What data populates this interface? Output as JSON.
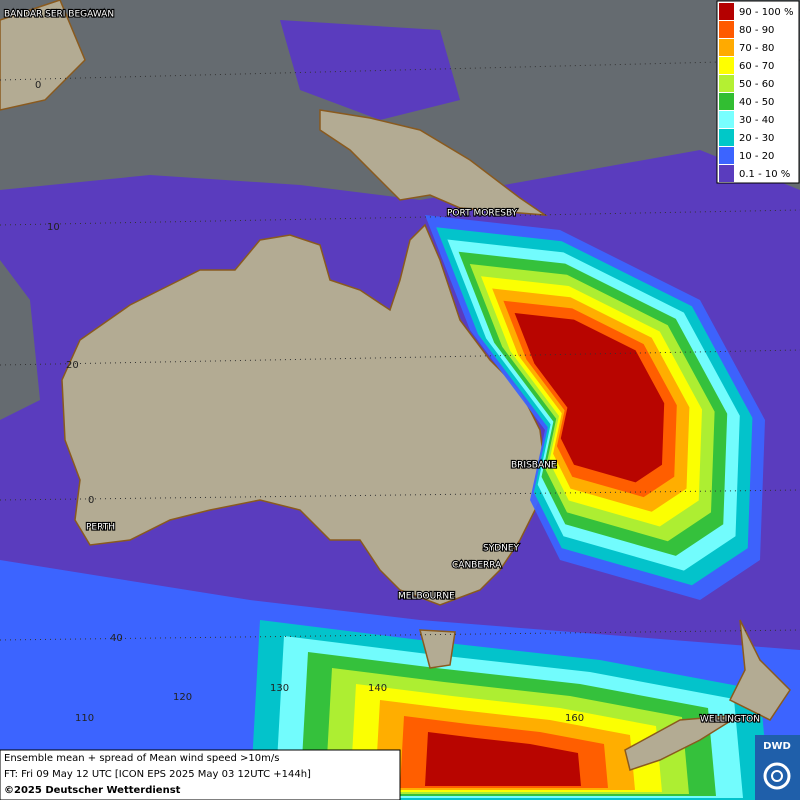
{
  "map": {
    "places": [
      "BANDAR SERI BEGAWAN",
      "PORT MORESBY",
      "BRISBANE",
      "PERTH",
      "SYDNEY",
      "CANBERRA",
      "MELBOURNE",
      "WELLINGTON"
    ],
    "grid_labels": [
      "0",
      "10",
      "20",
      "0",
      "40",
      "110",
      "120",
      "130",
      "140",
      "160"
    ],
    "legend": [
      {
        "label": "90 - 100 %",
        "color": "#b40000"
      },
      {
        "label": "80 - 90",
        "color": "#ff5a00"
      },
      {
        "label": "70 - 80",
        "color": "#ffaa00"
      },
      {
        "label": "60 - 70",
        "color": "#ffff00"
      },
      {
        "label": "50 - 60",
        "color": "#b4f032"
      },
      {
        "label": "40 - 50",
        "color": "#32be32"
      },
      {
        "label": "30 - 40",
        "color": "#78ffff"
      },
      {
        "label": "20 - 30",
        "color": "#00c8c8"
      },
      {
        "label": "10 - 20",
        "color": "#3c64ff"
      },
      {
        "label": "0.1 - 10 %",
        "color": "#5a3cbe"
      }
    ],
    "footer": {
      "line1": "Ensemble mean + spread of Mean wind speed >10m/s",
      "line2": "FT: Fri 09 May 12 UTC [ICON EPS 2025 May 03 12UTC +144h]",
      "line3": "©2025 Deutscher Wetterdienst"
    },
    "logo": "DWD"
  }
}
